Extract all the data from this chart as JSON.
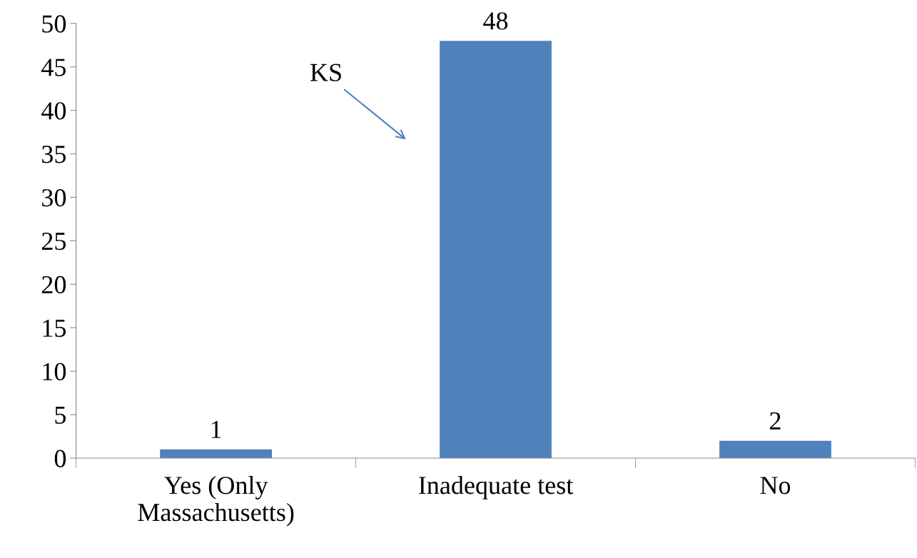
{
  "chart_data": {
    "type": "bar",
    "categories": [
      "Yes (Only\nMassachusetts)",
      "Inadequate test",
      "No"
    ],
    "values": [
      1,
      48,
      2
    ],
    "color": "#4f81bd",
    "ylim": [
      0,
      50
    ],
    "yticks": [
      0,
      5,
      10,
      15,
      20,
      25,
      30,
      35,
      40,
      45,
      50
    ],
    "data_labels": true,
    "grid": false,
    "legend": false,
    "annotations": [
      "KS"
    ]
  }
}
